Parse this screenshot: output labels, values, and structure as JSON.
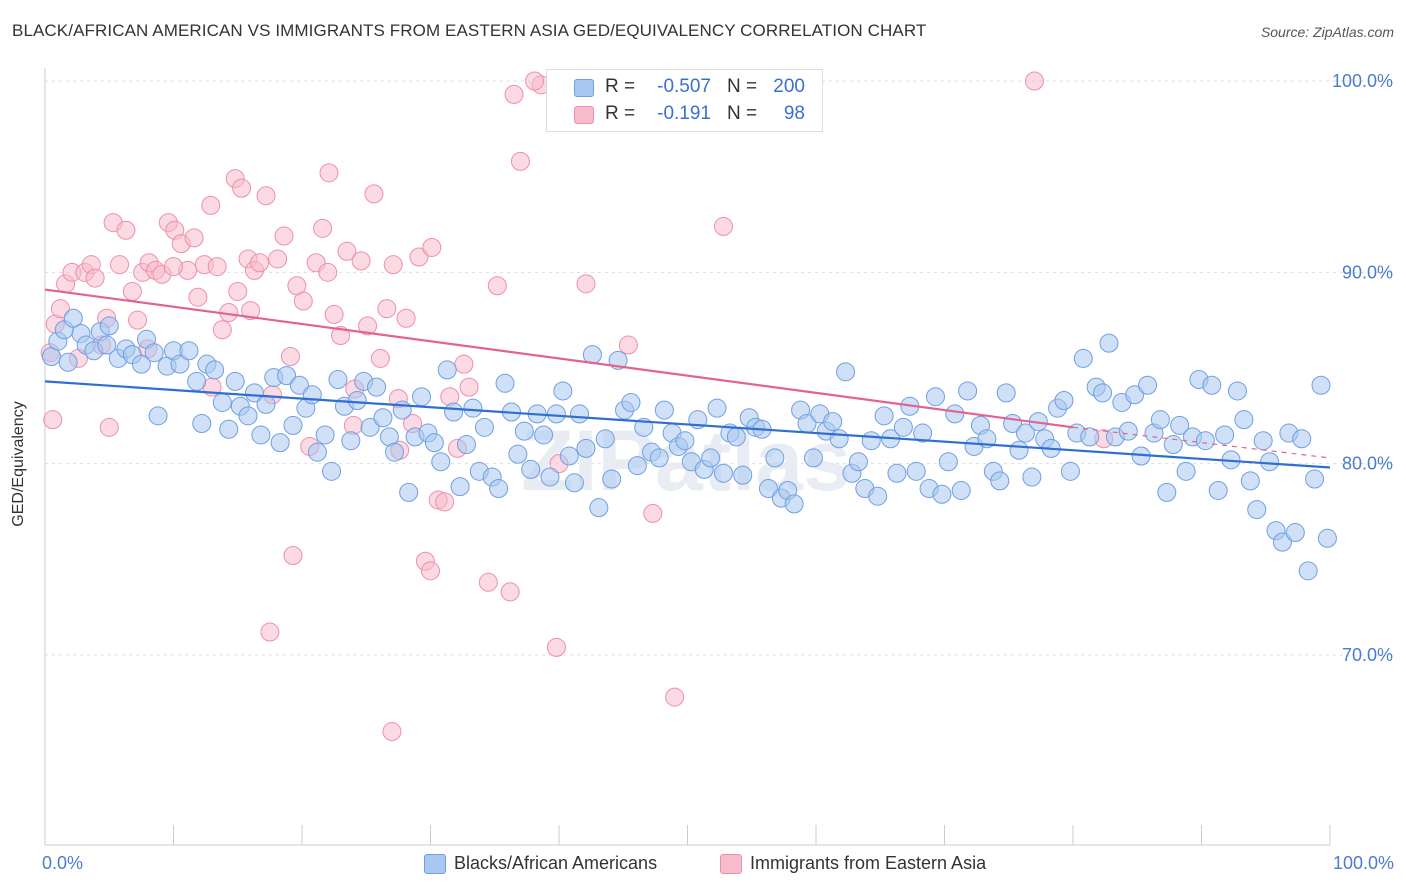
{
  "title": "BLACK/AFRICAN AMERICAN VS IMMIGRANTS FROM EASTERN ASIA GED/EQUIVALENCY CORRELATION CHART",
  "source": "Source: ZipAtlas.com",
  "watermark": "ZIPatlas",
  "colors": {
    "blue_fill": "#a9c8f1",
    "blue_stroke": "#6f9fe3",
    "blue_line": "#2f6fd1",
    "pink_fill": "#f7bccc",
    "pink_stroke": "#ee8fab",
    "pink_line": "#e4638e",
    "axis_text": "#4a7cd0",
    "grid": "#dddddd"
  },
  "legend": {
    "blue": {
      "r_label": "R =",
      "r_value": "-0.507",
      "n_label": "N =",
      "n_value": "200"
    },
    "pink": {
      "r_label": "R =",
      "r_value": "-0.191",
      "n_label": "N =",
      "n_value": "98"
    }
  },
  "chart_data": {
    "type": "scatter",
    "title": "BLACK/AFRICAN AMERICAN VS IMMIGRANTS FROM EASTERN ASIA GED/EQUIVALENCY CORRELATION CHART",
    "xlabel": "",
    "ylabel": "GED/Equivalency",
    "xlim": [
      0,
      100
    ],
    "ylim": [
      60,
      104
    ],
    "x_tick_labels": [
      "0.0%",
      "100.0%"
    ],
    "y_ticks": [
      70,
      80,
      90,
      100
    ],
    "y_tick_labels": [
      "70.0%",
      "80.0%",
      "90.0%",
      "100.0%"
    ],
    "grid": "horizontal dashed",
    "legend_position": "bottom",
    "series": [
      {
        "name": "Blacks/African Americans",
        "color": "#6f9fe3",
        "trend": {
          "x": [
            0,
            100
          ],
          "y": [
            84.3,
            79.8
          ]
        },
        "points": [
          [
            0.5,
            85.6
          ],
          [
            1.0,
            86.4
          ],
          [
            1.5,
            87.0
          ],
          [
            1.8,
            85.3
          ],
          [
            2.2,
            87.6
          ],
          [
            2.8,
            86.8
          ],
          [
            3.2,
            86.2
          ],
          [
            3.8,
            85.9
          ],
          [
            4.3,
            86.9
          ],
          [
            4.8,
            86.2
          ],
          [
            5.0,
            87.2
          ],
          [
            5.7,
            85.5
          ],
          [
            6.3,
            86.0
          ],
          [
            6.8,
            85.7
          ],
          [
            7.5,
            85.2
          ],
          [
            7.9,
            86.5
          ],
          [
            8.5,
            85.8
          ],
          [
            8.8,
            82.5
          ],
          [
            9.5,
            85.1
          ],
          [
            10.0,
            85.9
          ],
          [
            10.5,
            85.2
          ],
          [
            11.2,
            85.9
          ],
          [
            11.8,
            84.3
          ],
          [
            12.2,
            82.1
          ],
          [
            12.6,
            85.2
          ],
          [
            13.2,
            84.9
          ],
          [
            13.8,
            83.2
          ],
          [
            14.3,
            81.8
          ],
          [
            14.8,
            84.3
          ],
          [
            15.2,
            83.0
          ],
          [
            15.8,
            82.5
          ],
          [
            16.3,
            83.7
          ],
          [
            16.8,
            81.5
          ],
          [
            17.2,
            83.1
          ],
          [
            17.8,
            84.5
          ],
          [
            18.3,
            81.1
          ],
          [
            18.8,
            84.6
          ],
          [
            19.3,
            82.0
          ],
          [
            19.8,
            84.1
          ],
          [
            20.3,
            82.9
          ],
          [
            20.8,
            83.6
          ],
          [
            21.2,
            80.6
          ],
          [
            21.8,
            81.5
          ],
          [
            22.3,
            79.6
          ],
          [
            22.8,
            84.4
          ],
          [
            23.3,
            83.0
          ],
          [
            23.8,
            81.2
          ],
          [
            24.3,
            83.3
          ],
          [
            24.8,
            84.3
          ],
          [
            25.3,
            81.9
          ],
          [
            25.8,
            84.0
          ],
          [
            26.3,
            82.4
          ],
          [
            26.8,
            81.4
          ],
          [
            27.2,
            80.6
          ],
          [
            27.8,
            82.8
          ],
          [
            28.3,
            78.5
          ],
          [
            28.8,
            81.4
          ],
          [
            29.3,
            83.5
          ],
          [
            29.8,
            81.6
          ],
          [
            30.3,
            81.1
          ],
          [
            30.8,
            80.1
          ],
          [
            31.3,
            84.9
          ],
          [
            31.8,
            82.7
          ],
          [
            32.3,
            78.8
          ],
          [
            32.8,
            81.0
          ],
          [
            33.3,
            82.9
          ],
          [
            33.8,
            79.6
          ],
          [
            34.2,
            81.9
          ],
          [
            34.8,
            79.3
          ],
          [
            35.3,
            78.7
          ],
          [
            35.8,
            84.2
          ],
          [
            36.3,
            82.7
          ],
          [
            36.8,
            80.5
          ],
          [
            37.3,
            81.7
          ],
          [
            37.8,
            79.7
          ],
          [
            38.3,
            82.6
          ],
          [
            38.8,
            81.5
          ],
          [
            39.3,
            79.3
          ],
          [
            39.8,
            82.6
          ],
          [
            40.3,
            83.8
          ],
          [
            40.8,
            80.4
          ],
          [
            41.2,
            79.0
          ],
          [
            41.6,
            82.6
          ],
          [
            42.1,
            80.8
          ],
          [
            42.6,
            85.7
          ],
          [
            43.1,
            77.7
          ],
          [
            43.6,
            81.3
          ],
          [
            44.1,
            79.2
          ],
          [
            44.6,
            85.4
          ],
          [
            45.1,
            82.8
          ],
          [
            45.6,
            83.2
          ],
          [
            46.1,
            79.9
          ],
          [
            46.6,
            81.9
          ],
          [
            47.2,
            80.6
          ],
          [
            47.8,
            80.3
          ],
          [
            48.2,
            82.8
          ],
          [
            48.8,
            81.6
          ],
          [
            49.3,
            80.9
          ],
          [
            49.8,
            81.2
          ],
          [
            50.3,
            80.1
          ],
          [
            50.8,
            82.3
          ],
          [
            51.3,
            79.7
          ],
          [
            51.8,
            80.3
          ],
          [
            52.3,
            82.9
          ],
          [
            52.8,
            79.5
          ],
          [
            53.3,
            81.6
          ],
          [
            53.8,
            81.4
          ],
          [
            54.3,
            79.4
          ],
          [
            54.8,
            82.4
          ],
          [
            55.3,
            81.9
          ],
          [
            55.8,
            81.8
          ],
          [
            56.3,
            78.7
          ],
          [
            56.8,
            80.3
          ],
          [
            57.3,
            78.2
          ],
          [
            57.8,
            78.6
          ],
          [
            58.3,
            77.9
          ],
          [
            58.8,
            82.8
          ],
          [
            59.3,
            82.1
          ],
          [
            59.8,
            80.3
          ],
          [
            60.3,
            82.6
          ],
          [
            60.8,
            81.7
          ],
          [
            61.3,
            82.2
          ],
          [
            61.8,
            81.3
          ],
          [
            62.3,
            84.8
          ],
          [
            62.8,
            79.5
          ],
          [
            63.3,
            80.1
          ],
          [
            63.8,
            78.7
          ],
          [
            64.3,
            81.2
          ],
          [
            64.8,
            78.3
          ],
          [
            65.3,
            82.5
          ],
          [
            65.8,
            81.3
          ],
          [
            66.3,
            79.5
          ],
          [
            66.8,
            81.9
          ],
          [
            67.3,
            83.0
          ],
          [
            67.8,
            79.6
          ],
          [
            68.3,
            81.6
          ],
          [
            68.8,
            78.7
          ],
          [
            69.3,
            83.5
          ],
          [
            69.8,
            78.4
          ],
          [
            70.3,
            80.1
          ],
          [
            70.8,
            82.6
          ],
          [
            71.3,
            78.6
          ],
          [
            71.8,
            83.8
          ],
          [
            72.3,
            80.9
          ],
          [
            72.8,
            82.0
          ],
          [
            73.3,
            81.3
          ],
          [
            73.8,
            79.6
          ],
          [
            74.3,
            79.1
          ],
          [
            74.8,
            83.7
          ],
          [
            75.3,
            82.1
          ],
          [
            75.8,
            80.7
          ],
          [
            76.3,
            81.6
          ],
          [
            76.8,
            79.3
          ],
          [
            77.3,
            82.2
          ],
          [
            77.8,
            81.3
          ],
          [
            78.3,
            80.8
          ],
          [
            78.8,
            82.9
          ],
          [
            79.3,
            83.3
          ],
          [
            79.8,
            79.6
          ],
          [
            80.3,
            81.6
          ],
          [
            80.8,
            85.5
          ],
          [
            81.3,
            81.4
          ],
          [
            81.8,
            84.0
          ],
          [
            82.3,
            83.7
          ],
          [
            82.8,
            86.3
          ],
          [
            83.3,
            81.4
          ],
          [
            83.8,
            83.2
          ],
          [
            84.3,
            81.7
          ],
          [
            84.8,
            83.6
          ],
          [
            85.3,
            80.4
          ],
          [
            85.8,
            84.1
          ],
          [
            86.3,
            81.6
          ],
          [
            86.8,
            82.3
          ],
          [
            87.3,
            78.5
          ],
          [
            87.8,
            81.0
          ],
          [
            88.3,
            82.0
          ],
          [
            88.8,
            79.6
          ],
          [
            89.3,
            81.4
          ],
          [
            89.8,
            84.4
          ],
          [
            90.3,
            81.2
          ],
          [
            90.8,
            84.1
          ],
          [
            91.3,
            78.6
          ],
          [
            91.8,
            81.5
          ],
          [
            92.3,
            80.2
          ],
          [
            92.8,
            83.8
          ],
          [
            93.3,
            82.3
          ],
          [
            93.8,
            79.1
          ],
          [
            94.3,
            77.6
          ],
          [
            94.8,
            81.2
          ],
          [
            95.3,
            80.1
          ],
          [
            95.8,
            76.5
          ],
          [
            96.3,
            75.9
          ],
          [
            96.8,
            81.6
          ],
          [
            97.3,
            76.4
          ],
          [
            97.8,
            81.3
          ],
          [
            98.3,
            74.4
          ],
          [
            98.8,
            79.2
          ],
          [
            99.3,
            84.1
          ],
          [
            99.8,
            76.1
          ]
        ]
      },
      {
        "name": "Immigrants from Eastern Asia",
        "color": "#ee8fab",
        "trend": {
          "x": [
            0,
            80
          ],
          "y": [
            89.1,
            81.9
          ]
        },
        "trend_dashed": {
          "x": [
            80,
            100
          ],
          "y": [
            81.9,
            80.3
          ]
        },
        "points": [
          [
            0.4,
            85.8
          ],
          [
            0.6,
            82.3
          ],
          [
            0.8,
            87.3
          ],
          [
            1.2,
            88.1
          ],
          [
            1.6,
            89.4
          ],
          [
            2.1,
            90.0
          ],
          [
            2.6,
            85.5
          ],
          [
            3.1,
            90.0
          ],
          [
            3.6,
            90.4
          ],
          [
            3.9,
            89.7
          ],
          [
            4.4,
            86.2
          ],
          [
            4.8,
            87.6
          ],
          [
            5.3,
            92.6
          ],
          [
            5.8,
            90.4
          ],
          [
            6.3,
            92.2
          ],
          [
            6.8,
            89.0
          ],
          [
            7.2,
            87.5
          ],
          [
            7.6,
            90.0
          ],
          [
            8.1,
            90.5
          ],
          [
            8.6,
            90.1
          ],
          [
            9.1,
            89.9
          ],
          [
            9.6,
            92.6
          ],
          [
            10.1,
            92.2
          ],
          [
            10.6,
            91.5
          ],
          [
            11.1,
            90.1
          ],
          [
            11.6,
            91.8
          ],
          [
            11.9,
            88.7
          ],
          [
            12.4,
            90.4
          ],
          [
            12.9,
            93.5
          ],
          [
            13.4,
            90.3
          ],
          [
            13.8,
            87.0
          ],
          [
            14.3,
            87.9
          ],
          [
            14.8,
            94.9
          ],
          [
            15.3,
            94.4
          ],
          [
            15.8,
            90.7
          ],
          [
            16.3,
            90.1
          ],
          [
            16.7,
            90.5
          ],
          [
            17.2,
            94.0
          ],
          [
            17.7,
            83.6
          ],
          [
            18.1,
            90.7
          ],
          [
            18.6,
            91.9
          ],
          [
            19.1,
            85.6
          ],
          [
            19.6,
            89.3
          ],
          [
            20.1,
            88.5
          ],
          [
            20.6,
            80.9
          ],
          [
            21.1,
            90.5
          ],
          [
            21.6,
            92.3
          ],
          [
            22.1,
            95.2
          ],
          [
            22.5,
            87.8
          ],
          [
            23.0,
            86.7
          ],
          [
            23.5,
            91.1
          ],
          [
            24.1,
            83.9
          ],
          [
            24.6,
            90.6
          ],
          [
            25.1,
            87.2
          ],
          [
            25.6,
            94.1
          ],
          [
            26.1,
            85.5
          ],
          [
            26.6,
            88.1
          ],
          [
            27.1,
            90.4
          ],
          [
            27.6,
            80.7
          ],
          [
            28.1,
            87.6
          ],
          [
            28.6,
            82.1
          ],
          [
            29.1,
            90.8
          ],
          [
            29.6,
            74.9
          ],
          [
            30.1,
            91.3
          ],
          [
            30.6,
            78.1
          ],
          [
            31.1,
            78.0
          ],
          [
            31.5,
            83.5
          ],
          [
            32.1,
            80.8
          ],
          [
            32.6,
            85.2
          ],
          [
            35.2,
            89.3
          ],
          [
            36.5,
            99.3
          ],
          [
            37.0,
            95.8
          ],
          [
            38.6,
            99.8
          ],
          [
            39.8,
            70.4
          ],
          [
            42.1,
            89.4
          ],
          [
            45.4,
            86.2
          ],
          [
            47.3,
            77.4
          ],
          [
            49.0,
            67.8
          ],
          [
            52.8,
            92.4
          ],
          [
            82.4,
            81.3
          ],
          [
            77.0,
            100.0
          ],
          [
            38.1,
            100.0
          ],
          [
            17.5,
            71.2
          ],
          [
            19.3,
            75.2
          ],
          [
            27.0,
            66.0
          ],
          [
            34.5,
            73.8
          ],
          [
            36.2,
            73.3
          ],
          [
            30.0,
            74.4
          ],
          [
            5.0,
            81.9
          ],
          [
            15.0,
            89.0
          ],
          [
            24.0,
            82.0
          ],
          [
            13.0,
            84.0
          ],
          [
            8.0,
            86.0
          ],
          [
            10.0,
            90.3
          ],
          [
            16.0,
            88.0
          ],
          [
            22.0,
            90.0
          ],
          [
            27.5,
            83.4
          ],
          [
            33.0,
            84.0
          ],
          [
            40.0,
            80.0
          ]
        ]
      }
    ]
  }
}
